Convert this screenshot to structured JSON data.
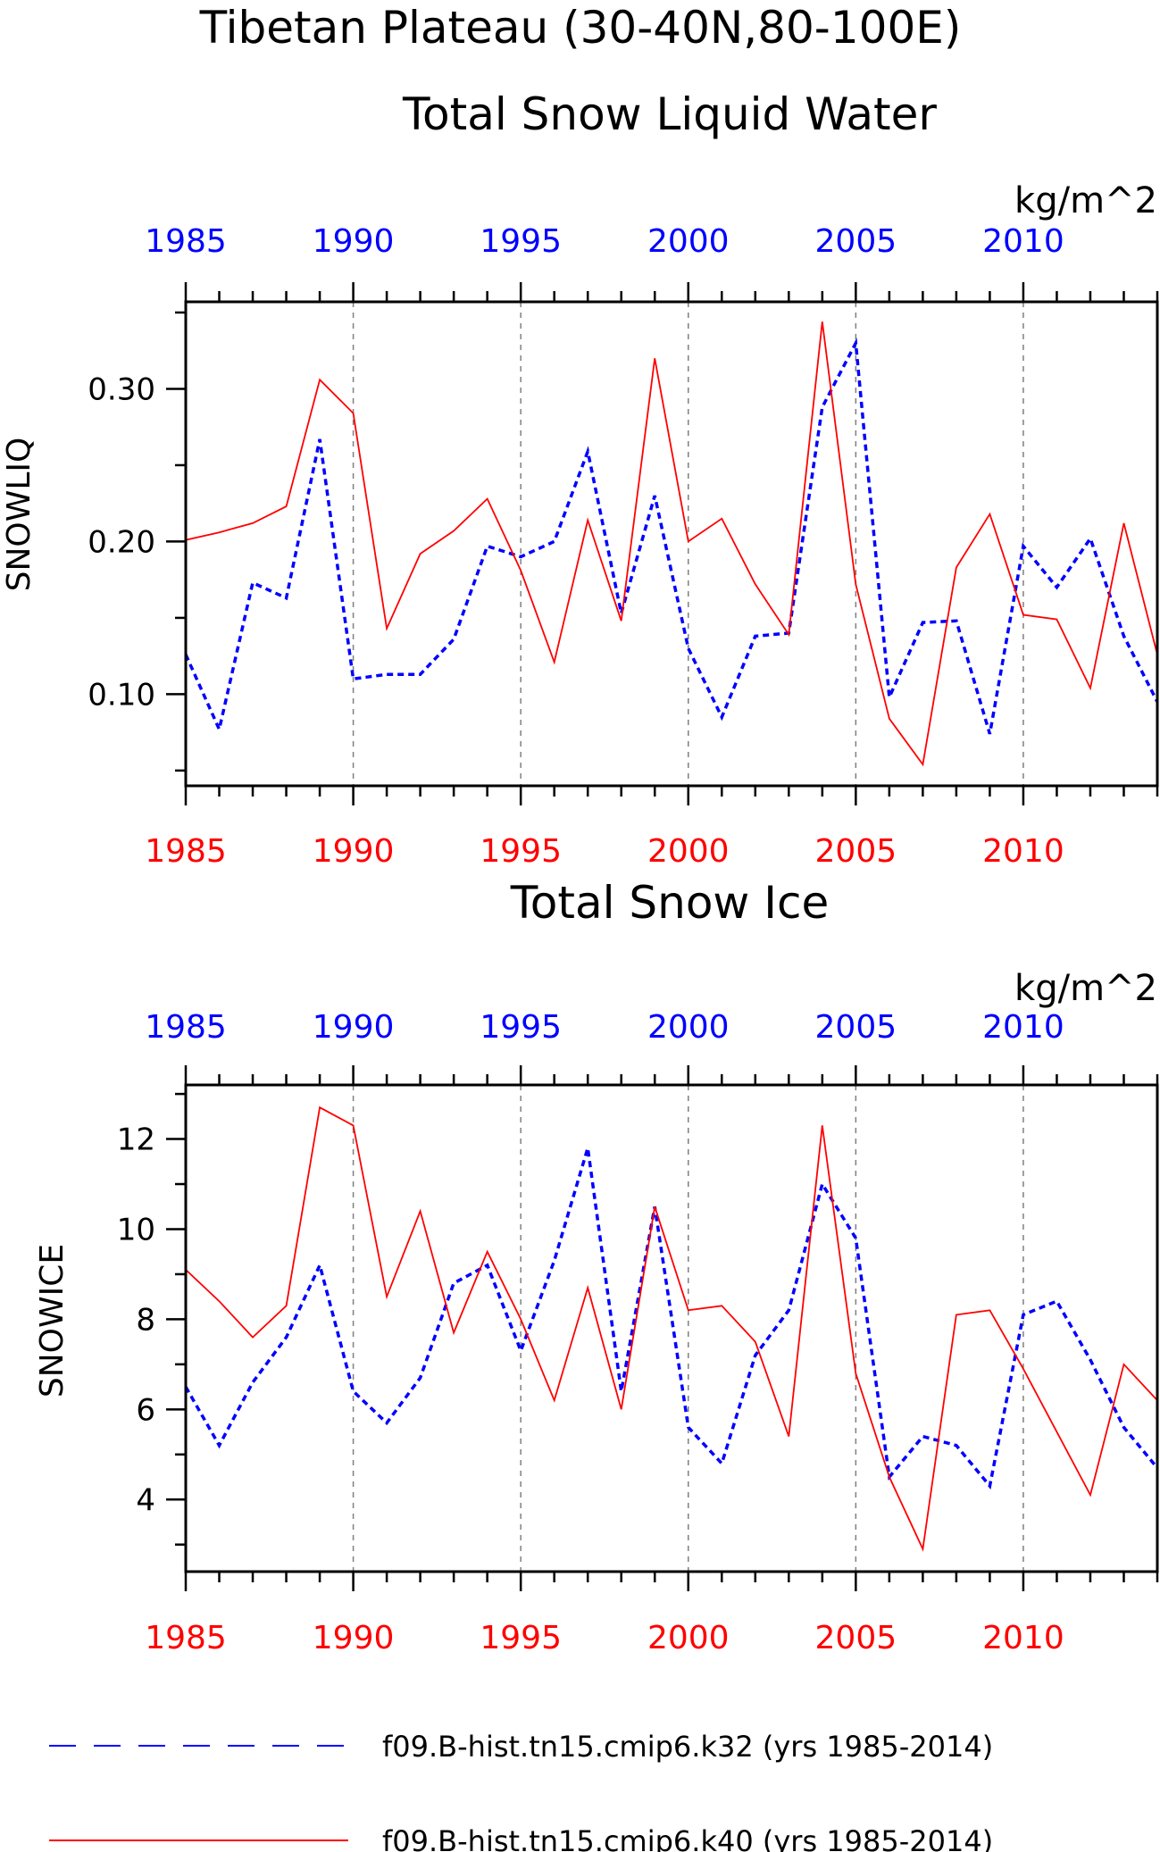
{
  "header": {
    "title": "Tibetan Plateau (30-40N,80-100E)"
  },
  "legend": {
    "entries": [
      {
        "label": "f09.B-hist.tn15.cmip6.k32 (yrs 1985-2014)",
        "color": "#0000ff",
        "style": "dashed"
      },
      {
        "label": "f09.B-hist.tn15.cmip6.k40 (yrs 1985-2014)",
        "color": "#ff0000",
        "style": "solid"
      }
    ]
  },
  "colors": {
    "k32": "#0000ff",
    "k40": "#ff0000",
    "frame": "#000000",
    "refline": "#808080"
  },
  "chart_data": [
    {
      "type": "line",
      "title": "Total Snow Liquid Water",
      "units": "kg/m^2",
      "ylabel": "SNOWLIQ",
      "xlim": [
        1985,
        2014
      ],
      "ylim": [
        0.04,
        0.357
      ],
      "yticks": [
        0.1,
        0.2,
        0.3
      ],
      "ytick_labels": [
        "0.10",
        "0.20",
        "0.30"
      ],
      "xticks": [
        1985,
        1990,
        1995,
        2000,
        2005,
        2010
      ],
      "xtick_labels": [
        "1985",
        "1990",
        "1995",
        "2000",
        "2005",
        "2010"
      ],
      "vertical_reference_lines": [
        1990,
        1995,
        2000,
        2005,
        2010
      ],
      "grid": false,
      "x": [
        1985,
        1986,
        1987,
        1988,
        1989,
        1990,
        1991,
        1992,
        1993,
        1994,
        1995,
        1996,
        1997,
        1998,
        1999,
        2000,
        2001,
        2002,
        2003,
        2004,
        2005,
        2006,
        2007,
        2008,
        2009,
        2010,
        2011,
        2012,
        2013,
        2014
      ],
      "series": [
        {
          "name": "f09.B-hist.tn15.cmip6.k32 (yrs 1985-2014)",
          "color": "#0000ff",
          "style": "dashed",
          "values": [
            0.126,
            0.077,
            0.173,
            0.163,
            0.267,
            0.11,
            0.113,
            0.113,
            0.136,
            0.197,
            0.19,
            0.2,
            0.259,
            0.153,
            0.23,
            0.13,
            0.085,
            0.138,
            0.14,
            0.288,
            0.33,
            0.098,
            0.147,
            0.148,
            0.074,
            0.197,
            0.17,
            0.202,
            0.138,
            0.095
          ]
        },
        {
          "name": "f09.B-hist.tn15.cmip6.k40 (yrs 1985-2014)",
          "color": "#ff0000",
          "style": "solid",
          "values": [
            0.201,
            0.206,
            0.212,
            0.223,
            0.306,
            0.284,
            0.143,
            0.192,
            0.207,
            0.228,
            0.181,
            0.121,
            0.214,
            0.148,
            0.32,
            0.2,
            0.215,
            0.172,
            0.139,
            0.344,
            0.172,
            0.084,
            0.054,
            0.183,
            0.218,
            0.152,
            0.149,
            0.104,
            0.212,
            0.126
          ]
        }
      ]
    },
    {
      "type": "line",
      "title": "Total Snow Ice",
      "units": "kg/m^2",
      "ylabel": "SNOWICE",
      "xlim": [
        1985,
        2014
      ],
      "ylim": [
        2.4,
        13.2
      ],
      "yticks": [
        4,
        6,
        8,
        10,
        12
      ],
      "ytick_labels": [
        "4",
        "6",
        "8",
        "10",
        "12"
      ],
      "xticks": [
        1985,
        1990,
        1995,
        2000,
        2005,
        2010
      ],
      "xtick_labels": [
        "1985",
        "1990",
        "1995",
        "2000",
        "2005",
        "2010"
      ],
      "vertical_reference_lines": [
        1990,
        1995,
        2000,
        2005,
        2010
      ],
      "grid": false,
      "x": [
        1985,
        1986,
        1987,
        1988,
        1989,
        1990,
        1991,
        1992,
        1993,
        1994,
        1995,
        1996,
        1997,
        1998,
        1999,
        2000,
        2001,
        2002,
        2003,
        2004,
        2005,
        2006,
        2007,
        2008,
        2009,
        2010,
        2011,
        2012,
        2013,
        2014
      ],
      "series": [
        {
          "name": "f09.B-hist.tn15.cmip6.k32 (yrs 1985-2014)",
          "color": "#0000ff",
          "style": "dashed",
          "values": [
            6.5,
            5.2,
            6.6,
            7.6,
            9.2,
            6.4,
            5.7,
            6.7,
            8.8,
            9.2,
            7.3,
            9.3,
            11.8,
            6.4,
            10.5,
            5.6,
            4.8,
            7.2,
            8.2,
            11.0,
            9.8,
            4.5,
            5.4,
            5.2,
            4.3,
            8.1,
            8.4,
            7.1,
            5.6,
            4.7
          ]
        },
        {
          "name": "f09.B-hist.tn15.cmip6.k40 (yrs 1985-2014)",
          "color": "#ff0000",
          "style": "solid",
          "values": [
            9.1,
            8.4,
            7.6,
            8.3,
            12.7,
            12.3,
            8.5,
            10.4,
            7.7,
            9.5,
            8.0,
            6.2,
            8.7,
            6.0,
            10.5,
            8.2,
            8.3,
            7.5,
            5.4,
            12.3,
            6.8,
            4.5,
            2.9,
            8.1,
            8.2,
            6.9,
            null,
            4.1,
            7.0,
            6.2
          ]
        }
      ]
    }
  ]
}
